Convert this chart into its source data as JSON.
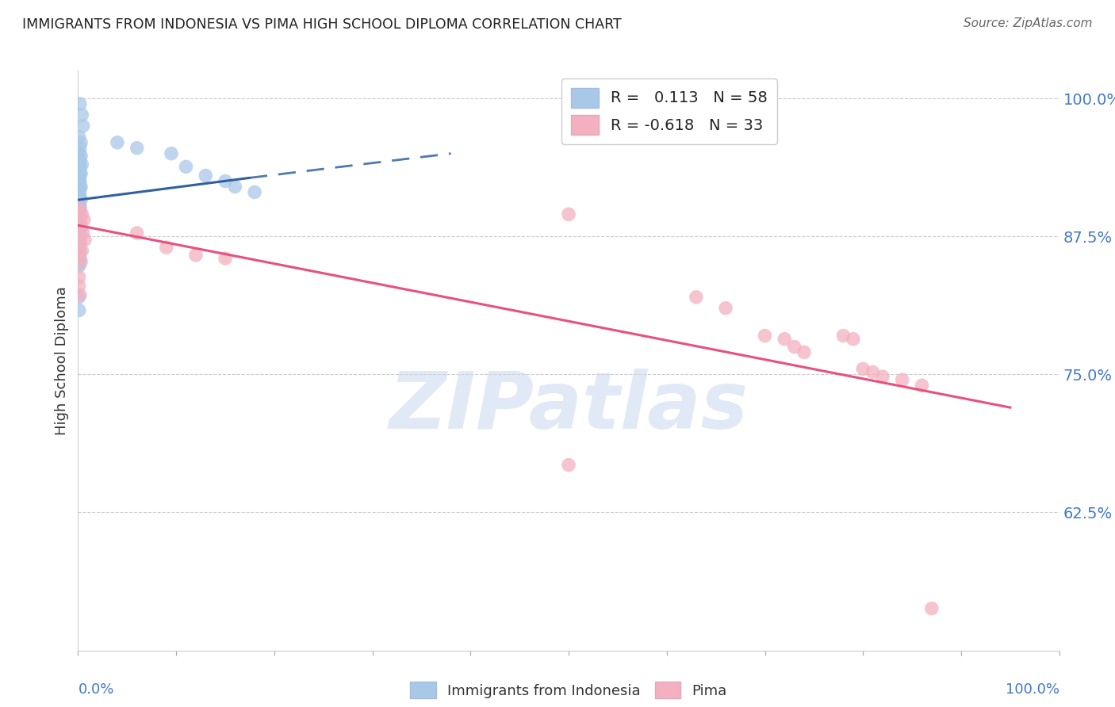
{
  "title": "IMMIGRANTS FROM INDONESIA VS PIMA HIGH SCHOOL DIPLOMA CORRELATION CHART",
  "source": "Source: ZipAtlas.com",
  "ylabel": "High School Diploma",
  "legend_label1": "Immigrants from Indonesia",
  "legend_label2": "Pima",
  "r1": 0.113,
  "n1": 58,
  "r2": -0.618,
  "n2": 33,
  "blue_color": "#a8c8e8",
  "pink_color": "#f4b0c0",
  "blue_line_color": "#3060a0",
  "pink_line_color": "#e85080",
  "blue_scatter": [
    [
      0.002,
      0.995
    ],
    [
      0.004,
      0.985
    ],
    [
      0.005,
      0.975
    ],
    [
      0.001,
      0.965
    ],
    [
      0.003,
      0.96
    ],
    [
      0.002,
      0.955
    ],
    [
      0.001,
      0.95
    ],
    [
      0.003,
      0.948
    ],
    [
      0.002,
      0.945
    ],
    [
      0.001,
      0.942
    ],
    [
      0.004,
      0.94
    ],
    [
      0.002,
      0.938
    ],
    [
      0.001,
      0.935
    ],
    [
      0.003,
      0.932
    ],
    [
      0.002,
      0.93
    ],
    [
      0.001,
      0.928
    ],
    [
      0.002,
      0.925
    ],
    [
      0.001,
      0.922
    ],
    [
      0.003,
      0.92
    ],
    [
      0.002,
      0.918
    ],
    [
      0.001,
      0.915
    ],
    [
      0.002,
      0.912
    ],
    [
      0.001,
      0.91
    ],
    [
      0.003,
      0.908
    ],
    [
      0.001,
      0.905
    ],
    [
      0.002,
      0.902
    ],
    [
      0.001,
      0.9
    ],
    [
      0.002,
      0.898
    ],
    [
      0.001,
      0.895
    ],
    [
      0.002,
      0.892
    ],
    [
      0.001,
      0.89
    ],
    [
      0.002,
      0.888
    ],
    [
      0.001,
      0.885
    ],
    [
      0.003,
      0.882
    ],
    [
      0.002,
      0.88
    ],
    [
      0.001,
      0.878
    ],
    [
      0.002,
      0.875
    ],
    [
      0.001,
      0.873
    ],
    [
      0.002,
      0.87
    ],
    [
      0.001,
      0.868
    ],
    [
      0.001,
      0.865
    ],
    [
      0.002,
      0.862
    ],
    [
      0.001,
      0.86
    ],
    [
      0.001,
      0.858
    ],
    [
      0.002,
      0.855
    ],
    [
      0.001,
      0.852
    ],
    [
      0.001,
      0.85
    ],
    [
      0.001,
      0.848
    ],
    [
      0.04,
      0.96
    ],
    [
      0.06,
      0.955
    ],
    [
      0.095,
      0.95
    ],
    [
      0.11,
      0.938
    ],
    [
      0.13,
      0.93
    ],
    [
      0.15,
      0.925
    ],
    [
      0.16,
      0.92
    ],
    [
      0.18,
      0.915
    ],
    [
      0.001,
      0.82
    ],
    [
      0.001,
      0.808
    ]
  ],
  "pink_scatter": [
    [
      0.002,
      0.9
    ],
    [
      0.004,
      0.895
    ],
    [
      0.006,
      0.89
    ],
    [
      0.003,
      0.885
    ],
    [
      0.005,
      0.878
    ],
    [
      0.007,
      0.872
    ],
    [
      0.002,
      0.868
    ],
    [
      0.004,
      0.862
    ],
    [
      0.001,
      0.858
    ],
    [
      0.003,
      0.852
    ],
    [
      0.06,
      0.878
    ],
    [
      0.09,
      0.865
    ],
    [
      0.12,
      0.858
    ],
    [
      0.15,
      0.855
    ],
    [
      0.001,
      0.838
    ],
    [
      0.001,
      0.83
    ],
    [
      0.002,
      0.822
    ],
    [
      0.5,
      0.895
    ],
    [
      0.63,
      0.82
    ],
    [
      0.66,
      0.81
    ],
    [
      0.7,
      0.785
    ],
    [
      0.72,
      0.782
    ],
    [
      0.73,
      0.775
    ],
    [
      0.74,
      0.77
    ],
    [
      0.78,
      0.785
    ],
    [
      0.79,
      0.782
    ],
    [
      0.8,
      0.755
    ],
    [
      0.81,
      0.752
    ],
    [
      0.82,
      0.748
    ],
    [
      0.84,
      0.745
    ],
    [
      0.86,
      0.74
    ],
    [
      0.5,
      0.668
    ],
    [
      0.87,
      0.538
    ]
  ],
  "blue_line_solid": [
    [
      0.0,
      0.908
    ],
    [
      0.175,
      0.928
    ]
  ],
  "blue_line_dash": [
    [
      0.175,
      0.928
    ],
    [
      0.38,
      0.95
    ]
  ],
  "pink_line": [
    [
      0.0,
      0.885
    ],
    [
      0.95,
      0.72
    ]
  ],
  "xlim": [
    0.0,
    1.0
  ],
  "ylim": [
    0.5,
    1.025
  ],
  "ytick_positions": [
    0.625,
    0.75,
    0.875,
    1.0
  ],
  "ytick_labels": [
    "62.5%",
    "75.0%",
    "87.5%",
    "100.0%"
  ],
  "background_color": "#ffffff",
  "watermark": "ZIPatlas"
}
